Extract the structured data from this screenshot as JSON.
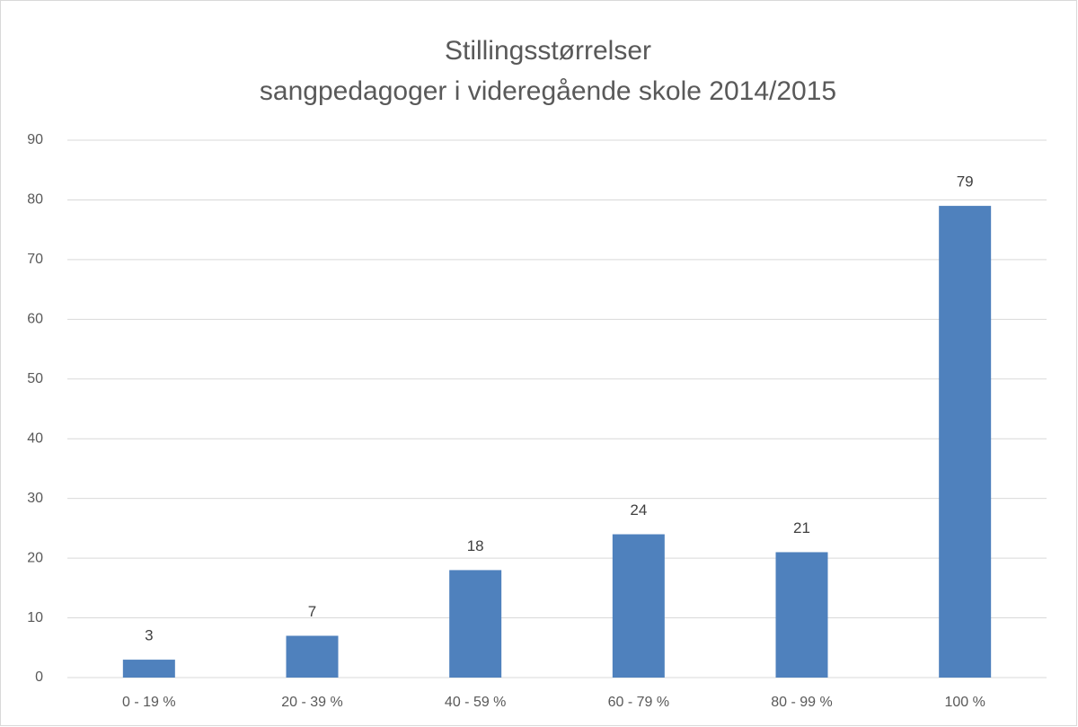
{
  "chart_data": {
    "type": "bar",
    "title": [
      "Stillingsstørrelser",
      "sangpedagoger i videregående skole 2014/2015"
    ],
    "categories": [
      "0 - 19 %",
      "20 - 39 %",
      "40 - 59 %",
      "60 - 79 %",
      "80 - 99 %",
      "100 %"
    ],
    "values": [
      3,
      7,
      18,
      24,
      21,
      79
    ],
    "color": "#4f81bd",
    "ylim": [
      0,
      90
    ],
    "yticks": [
      0,
      10,
      20,
      30,
      40,
      50,
      60,
      70,
      80,
      90
    ],
    "grid": true,
    "data_labels": true
  }
}
